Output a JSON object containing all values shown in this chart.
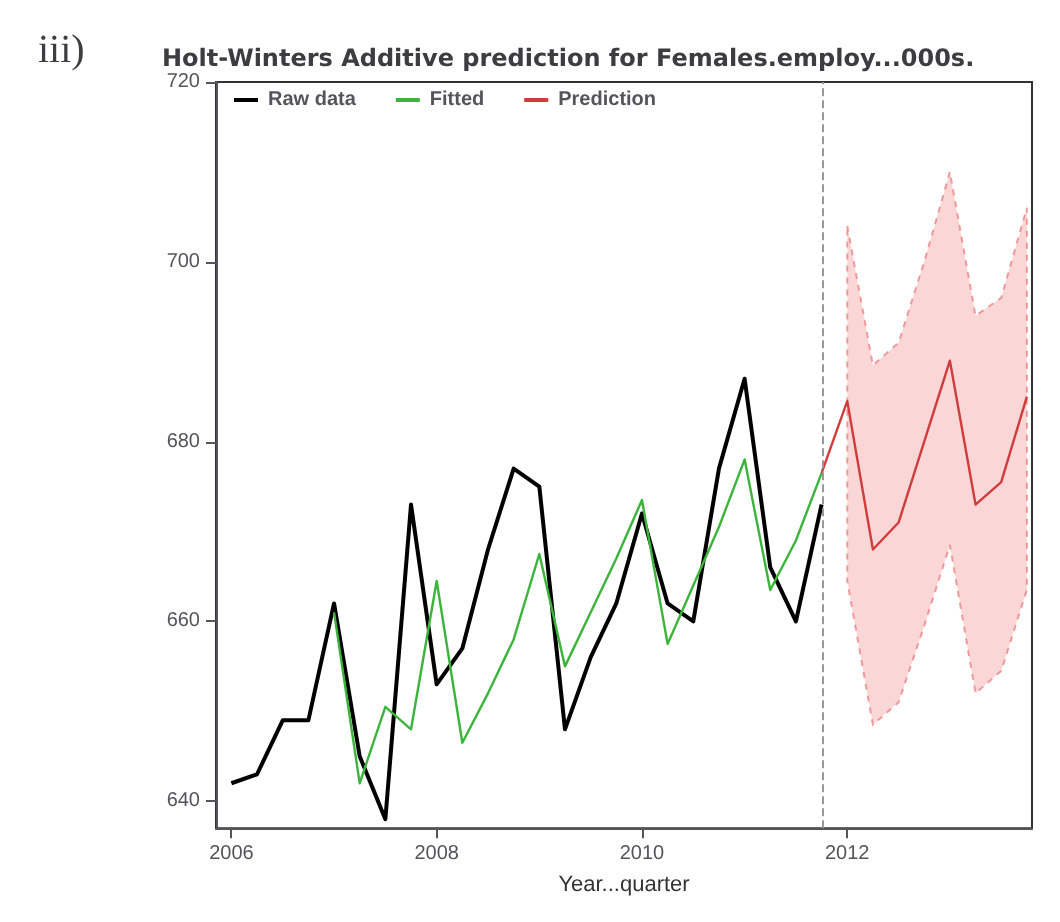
{
  "chart_data": {
    "type": "line",
    "title": "Holt-Winters Additive prediction for Females.employ...000s.",
    "xlabel": "Year...quarter",
    "annotations": [
      "iii)"
    ],
    "series": [
      {
        "name": "Raw data",
        "color": "#000000",
        "x": [
          2006,
          2006.25,
          2006.5,
          2006.75,
          2007,
          2007.25,
          2007.5,
          2007.75,
          2008,
          2008.25,
          2008.5,
          2008.75,
          2009,
          2009.25,
          2009.5,
          2009.75,
          2010,
          2010.25,
          2010.5,
          2010.75,
          2011,
          2011.25,
          2011.5,
          2011.75
        ],
        "values": [
          642,
          643,
          649,
          649,
          662,
          645,
          638,
          673,
          653,
          657,
          668,
          677,
          675,
          648,
          656,
          662,
          672,
          662,
          660,
          677,
          687,
          666,
          660,
          673
        ]
      },
      {
        "name": "Fitted",
        "color": "#3cb43c",
        "x": [
          2007,
          2007.25,
          2007.5,
          2007.75,
          2008,
          2008.25,
          2008.5,
          2008.75,
          2009,
          2009.25,
          2009.5,
          2009.75,
          2010,
          2010.25,
          2010.5,
          2010.75,
          2011,
          2011.25,
          2011.5,
          2011.75
        ],
        "values": [
          661,
          642,
          650.5,
          648,
          664.5,
          646.5,
          652,
          658,
          667.5,
          655,
          661,
          667,
          673.5,
          657.5,
          664,
          670.5,
          678,
          663.5,
          669,
          676.5
        ]
      },
      {
        "name": "Prediction",
        "color": "#d03c3c",
        "x": [
          2011.75,
          2012,
          2012.25,
          2012.5,
          2012.75,
          2013,
          2013.25,
          2013.5,
          2013.75
        ],
        "values": [
          676.5,
          684.5,
          668,
          671,
          680,
          689,
          673,
          675.5,
          685
        ],
        "lower": [
          null,
          664.5,
          648.5,
          651,
          659.5,
          668.5,
          652,
          654.5,
          663.5
        ],
        "upper": [
          null,
          704,
          688.5,
          691,
          700,
          710,
          694,
          696,
          706
        ]
      }
    ],
    "ref_lines": [
      {
        "axis": "x",
        "value": 2011.75,
        "color": "#999999",
        "line_style": "dashed"
      }
    ],
    "xlim": [
      2005.85,
      2013.8
    ],
    "xticks": [
      2006,
      2008,
      2010,
      2012
    ],
    "ylim": [
      637,
      720
    ],
    "yticks": [
      640,
      660,
      680,
      700,
      720
    ],
    "grid": false,
    "legend": "top left",
    "marker": "none",
    "line_style": "solid"
  }
}
